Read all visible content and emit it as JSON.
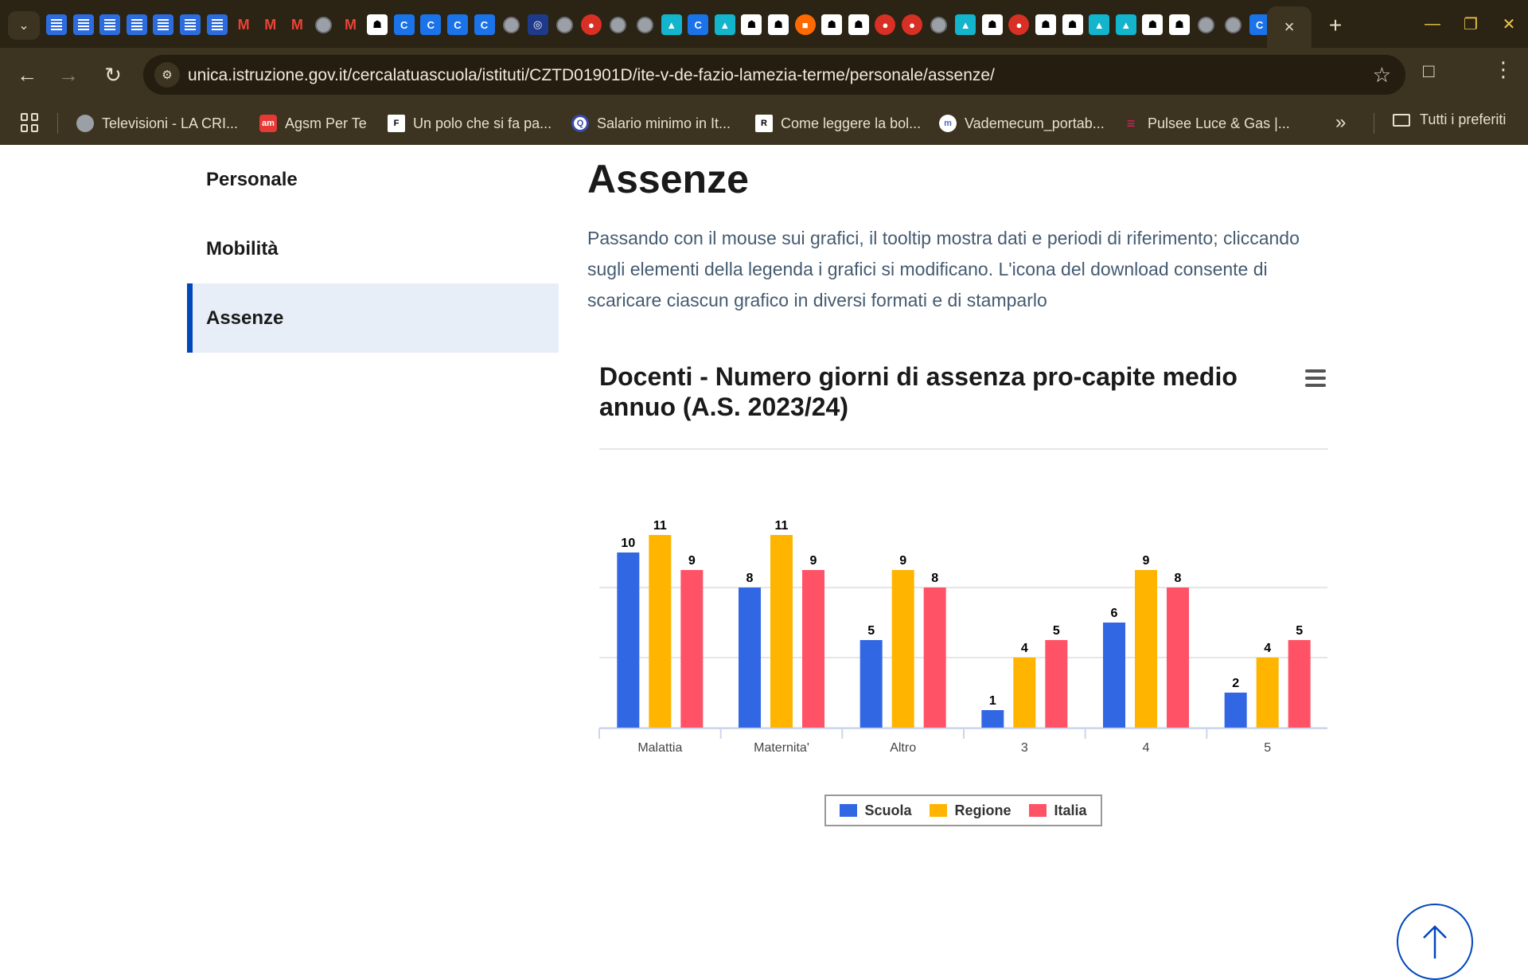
{
  "browser": {
    "url": "unica.istruzione.gov.it/cercalatuascuola/istituti/CZTD01901D/ite-v-de-fazio-lamezia-terme/personale/assenze/",
    "active_tab_close": "×",
    "new_tab": "+",
    "tab_favicons": [
      "doc",
      "doc",
      "doc",
      "doc",
      "doc",
      "doc",
      "doc",
      "mail",
      "mail",
      "mail",
      "globe",
      "mail",
      "white",
      "blue",
      "blue",
      "blue",
      "blue",
      "globe",
      "navy",
      "globe",
      "red",
      "globe",
      "globe",
      "teal",
      "blue",
      "teal",
      "white",
      "white",
      "orange",
      "white",
      "white",
      "red",
      "red",
      "globe",
      "teal",
      "white",
      "red",
      "white",
      "white",
      "teal",
      "teal",
      "white",
      "white",
      "globe",
      "globe",
      "blue"
    ],
    "bookmarks": [
      {
        "label": "Televisioni - LA CRI...",
        "icon": "globe-icon",
        "color": "#9aa0a6"
      },
      {
        "label": "Agsm Per Te",
        "icon": "am-icon",
        "color": "#e53935"
      },
      {
        "label": "Un polo che si fa pa...",
        "icon": "f-icon",
        "color": "#ffffff"
      },
      {
        "label": "Salario minimo in It...",
        "icon": "q-icon",
        "color": "#3949ab"
      },
      {
        "label": "Come leggere la bol...",
        "icon": "r-icon",
        "color": "#ffffff"
      },
      {
        "label": "Vademecum_portab...",
        "icon": "m-icon",
        "color": "#5c6bc0"
      },
      {
        "label": "Pulsee Luce & Gas |...",
        "icon": "pulsee-icon",
        "color": "#e91e63"
      }
    ],
    "bookmarks_more": "»",
    "all_bookmarks": "Tutti i preferiti"
  },
  "sidenav": {
    "items": [
      {
        "label": "Personale",
        "active": false
      },
      {
        "label": "Mobilità",
        "active": false
      },
      {
        "label": "Assenze",
        "active": true
      }
    ]
  },
  "main": {
    "title": "Assenze",
    "intro": "Passando con il mouse sui grafici, il tooltip mostra dati e periodi di riferimento; cliccando sugli elementi della legenda i grafici si modificano. L'icona del download consente di scaricare ciascun grafico in diversi formati e di stamparlo"
  },
  "chart_data": {
    "type": "bar",
    "title": "Docenti - Numero giorni di assenza pro-capite medio annuo (A.S. 2023/24)",
    "categories": [
      "Malattia",
      "Maternita'",
      "Altro",
      "3",
      "4",
      "5"
    ],
    "series": [
      {
        "name": "Scuola",
        "color": "#3267e3",
        "values": [
          10,
          8,
          5,
          1,
          6,
          2
        ]
      },
      {
        "name": "Regione",
        "color": "#ffb400",
        "values": [
          11,
          11,
          9,
          4,
          9,
          4
        ]
      },
      {
        "name": "Italia",
        "color": "#ff5266",
        "values": [
          9,
          9,
          8,
          5,
          8,
          5
        ]
      }
    ],
    "xlabel": "",
    "ylabel": "",
    "grid": true,
    "legend_position": "bottom-center"
  },
  "colors": {
    "accent": "#0047bb",
    "browser_frame": "#3c3320",
    "nav_active_bg": "#e8eef8"
  }
}
